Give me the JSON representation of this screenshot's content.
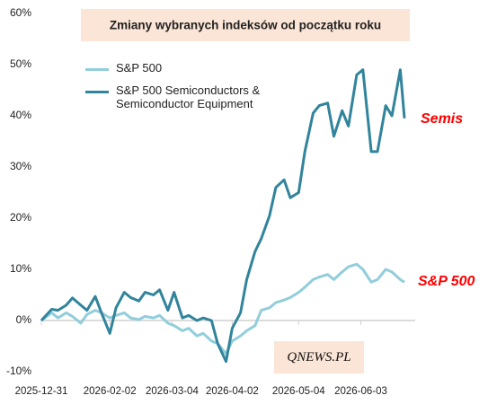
{
  "chart_data": {
    "type": "line",
    "title": "Zmiany wybranych indeksów od początku roku",
    "x": [
      "2025-12-31",
      "2026-01-05",
      "2026-01-08",
      "2026-01-12",
      "2026-01-15",
      "2026-01-19",
      "2026-01-22",
      "2026-01-26",
      "2026-01-29",
      "2026-02-02",
      "2026-02-05",
      "2026-02-09",
      "2026-02-12",
      "2026-02-16",
      "2026-02-19",
      "2026-02-23",
      "2026-02-26",
      "2026-03-02",
      "2026-03-05",
      "2026-03-09",
      "2026-03-12",
      "2026-03-16",
      "2026-03-19",
      "2026-03-23",
      "2026-03-26",
      "2026-03-30",
      "2026-04-02",
      "2026-04-06",
      "2026-04-09",
      "2026-04-13",
      "2026-04-16",
      "2026-04-20",
      "2026-04-23",
      "2026-04-27",
      "2026-04-30",
      "2026-05-04",
      "2026-05-07",
      "2026-05-11",
      "2026-05-14",
      "2026-05-18",
      "2026-05-21",
      "2026-05-25",
      "2026-05-28",
      "2026-06-01",
      "2026-06-04",
      "2026-06-08",
      "2026-06-11",
      "2026-06-15",
      "2026-06-18",
      "2026-06-22",
      "2026-06-24"
    ],
    "series": [
      {
        "name": "S&P 500",
        "color": "#92cddc",
        "values": [
          0,
          1.5,
          0.5,
          1.5,
          0.8,
          -0.5,
          1.2,
          2,
          1.5,
          0.5,
          1,
          1.5,
          0.5,
          0.2,
          0.8,
          0.5,
          1,
          -0.5,
          -1,
          -2,
          -1.5,
          -3,
          -2.5,
          -4,
          -4.5,
          -6.5,
          -4,
          -3,
          -2,
          -1,
          2,
          2.5,
          3.5,
          4,
          4.5,
          5.5,
          6.5,
          8,
          8.5,
          9,
          8,
          9.5,
          10.5,
          11,
          10,
          7.5,
          8,
          10,
          9.5,
          8,
          7.5
        ]
      },
      {
        "name": "S&P 500 Semiconductors & Semiconductor Equipment",
        "color": "#31849b",
        "values": [
          0,
          2.2,
          2,
          3,
          4.4,
          3,
          2,
          4.7,
          1.5,
          -2.5,
          2.5,
          5.5,
          4.5,
          3.8,
          5.5,
          5,
          6,
          2,
          5.5,
          0.5,
          1,
          0,
          0.5,
          0,
          -4.5,
          -8,
          -1.5,
          1.5,
          8,
          13.5,
          16,
          20.5,
          26,
          27.5,
          24,
          25,
          33,
          40.5,
          42,
          42.5,
          36,
          41,
          38,
          48,
          49,
          33,
          33,
          42,
          40,
          49,
          39.5
        ]
      }
    ],
    "xlim": [
      "2025-12-31",
      "2026-06-24"
    ],
    "xticks": [
      "2025-12-31",
      "2026-02-02",
      "2026-03-04",
      "2026-04-02",
      "2026-05-04",
      "2026-06-03"
    ],
    "ylim": [
      -10,
      60
    ],
    "yticks": [
      {
        "value": -10,
        "label": "-10%"
      },
      {
        "value": 0,
        "label": "0%"
      },
      {
        "value": 10,
        "label": "10%"
      },
      {
        "value": 20,
        "label": "20%"
      },
      {
        "value": 30,
        "label": "30%"
      },
      {
        "value": 40,
        "label": "40%"
      },
      {
        "value": 50,
        "label": "50%"
      },
      {
        "value": 60,
        "label": "60%"
      }
    ],
    "grid": false,
    "annotations": [
      {
        "text": "Semis",
        "color": "#ff0000"
      },
      {
        "text": "S&P 500",
        "color": "#ff0000"
      }
    ],
    "watermark": "QNEWS.PL"
  }
}
